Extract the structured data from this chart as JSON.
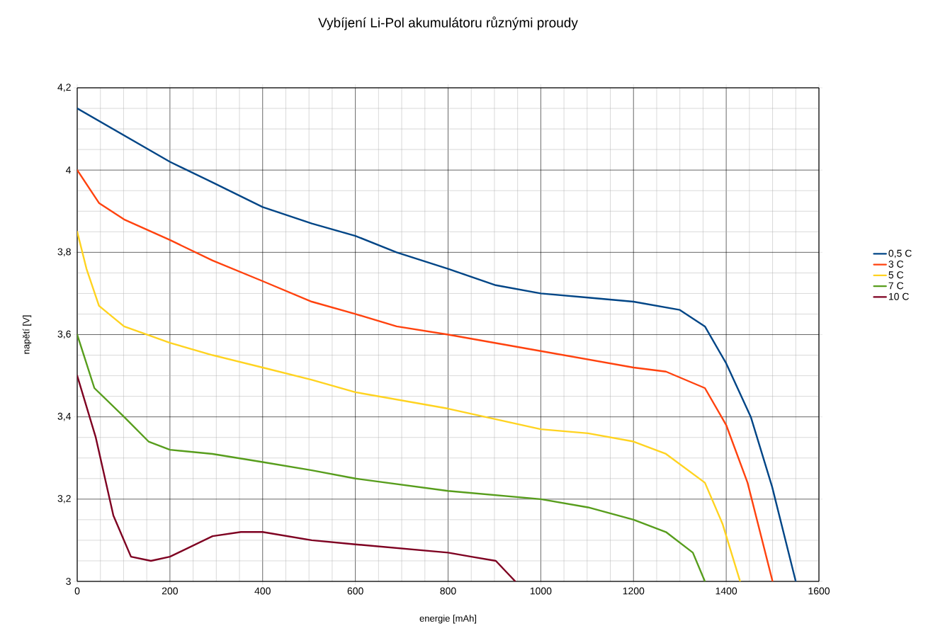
{
  "chart_data": {
    "type": "line",
    "title": "Vybíjení Li-Pol akumulátoru různými proudy",
    "xlabel": "energie [mAh]",
    "ylabel": "napětí [V]",
    "xlim": [
      0,
      1600
    ],
    "ylim": [
      3,
      4.2
    ],
    "xticks": [
      0,
      200,
      400,
      600,
      800,
      1000,
      1200,
      1400,
      1600
    ],
    "yticks": [
      3,
      {
        "value": 3.2,
        "label": "3,2"
      },
      {
        "value": 3.4,
        "label": "3,4"
      },
      {
        "value": 3.6,
        "label": "3,6"
      },
      {
        "value": 3.8,
        "label": "3,8"
      },
      4,
      {
        "value": 4.2,
        "label": "4,2"
      }
    ],
    "grid": true,
    "legend": "right",
    "marker": "none",
    "series": [
      {
        "name": "0,5 C",
        "color": "#004586",
        "x": [
          0,
          200,
          292,
          400,
          506,
          600,
          689,
          800,
          903,
          1000,
          1102,
          1200,
          1300,
          1354,
          1400,
          1453,
          1499,
          1550
        ],
        "values": [
          4.15,
          4.02,
          3.97,
          3.91,
          3.87,
          3.84,
          3.8,
          3.76,
          3.72,
          3.7,
          3.69,
          3.68,
          3.66,
          3.62,
          3.53,
          3.4,
          3.23,
          3.0
        ]
      },
      {
        "name": "3 C",
        "color": "#ff420e",
        "x": [
          0,
          47,
          101,
          200,
          292,
          400,
          506,
          600,
          689,
          800,
          1000,
          1200,
          1270,
          1354,
          1400,
          1446,
          1500
        ],
        "values": [
          4.0,
          3.92,
          3.88,
          3.83,
          3.78,
          3.73,
          3.68,
          3.65,
          3.62,
          3.6,
          3.56,
          3.52,
          3.51,
          3.47,
          3.38,
          3.24,
          3.0
        ]
      },
      {
        "name": "5 C",
        "color": "#ffd320",
        "x": [
          0,
          20,
          47,
          101,
          200,
          292,
          400,
          506,
          600,
          800,
          1000,
          1102,
          1200,
          1270,
          1354,
          1392,
          1430
        ],
        "values": [
          3.85,
          3.76,
          3.67,
          3.62,
          3.58,
          3.55,
          3.52,
          3.49,
          3.46,
          3.42,
          3.37,
          3.36,
          3.34,
          3.31,
          3.24,
          3.14,
          3.0
        ]
      },
      {
        "name": "7 C",
        "color": "#579d1c",
        "x": [
          0,
          37,
          101,
          154,
          200,
          292,
          400,
          506,
          600,
          800,
          1000,
          1102,
          1200,
          1270,
          1328,
          1354
        ],
        "values": [
          3.6,
          3.47,
          3.4,
          3.34,
          3.32,
          3.31,
          3.29,
          3.27,
          3.25,
          3.22,
          3.2,
          3.18,
          3.15,
          3.12,
          3.07,
          3.0
        ]
      },
      {
        "name": "10 C",
        "color": "#7e0021",
        "x": [
          0,
          40,
          78,
          116,
          159,
          200,
          292,
          353,
          400,
          506,
          600,
          800,
          850,
          903,
          945
        ],
        "values": [
          3.5,
          3.35,
          3.16,
          3.06,
          3.05,
          3.06,
          3.11,
          3.12,
          3.12,
          3.1,
          3.09,
          3.07,
          3.06,
          3.05,
          3.0
        ]
      }
    ]
  }
}
